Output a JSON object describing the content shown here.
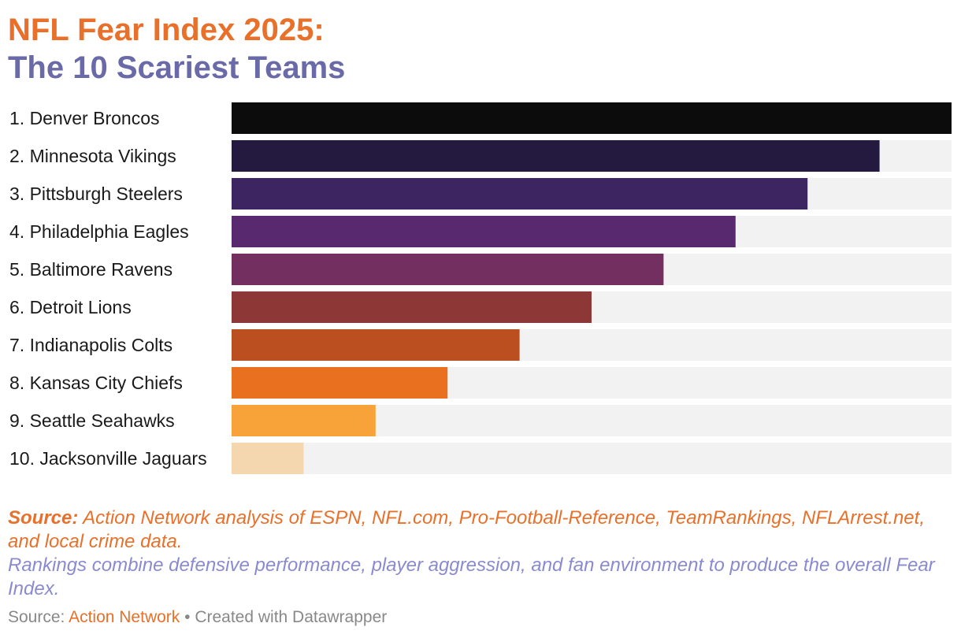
{
  "title": {
    "line1": "NFL Fear Index 2025:",
    "line2": "The 10 Scariest Teams",
    "line1_color": "#e8702a",
    "line2_color": "#6a6aa8"
  },
  "chart_data": {
    "type": "bar",
    "orientation": "horizontal",
    "title": "NFL Fear Index 2025: The 10 Scariest Teams",
    "categories": [
      "1. Denver Broncos",
      "2. Minnesota Vikings",
      "3. Pittsburgh Steelers",
      "4. Philadelphia Eagles",
      "5. Baltimore Ravens",
      "6. Detroit Lions",
      "7. Indianapolis Colts",
      "8. Kansas City Chiefs",
      "9. Seattle Seahawks",
      "10. Jacksonville Jaguars"
    ],
    "values": [
      100,
      90,
      80,
      70,
      60,
      50,
      40,
      30,
      20,
      10
    ],
    "colors": [
      "#0c0c0c",
      "#241a40",
      "#3c2561",
      "#58296f",
      "#722f5f",
      "#8e3737",
      "#bb4f1f",
      "#e8701f",
      "#f8a23a",
      "#f4d7ae"
    ],
    "track_color": "#f2f2f2",
    "xlim": [
      0,
      100
    ],
    "grid": false,
    "legend": "none"
  },
  "notes": {
    "source_label": "Source:",
    "source_text": " Action Network analysis of ESPN, NFL.com, Pro-Football-Reference, TeamRankings, NFLArrest.net, and local crime data.",
    "rankings_text": "Rankings combine defensive performance, player aggression, and fan environment to produce the overall Fear Index.",
    "source_color": "#e8702a",
    "rankings_color": "#8a8ad0"
  },
  "footer": {
    "prefix": "Source: ",
    "link_text": "Action Network",
    "separator": " • ",
    "credit": "Created with Datawrapper",
    "link_color": "#e8702a"
  }
}
